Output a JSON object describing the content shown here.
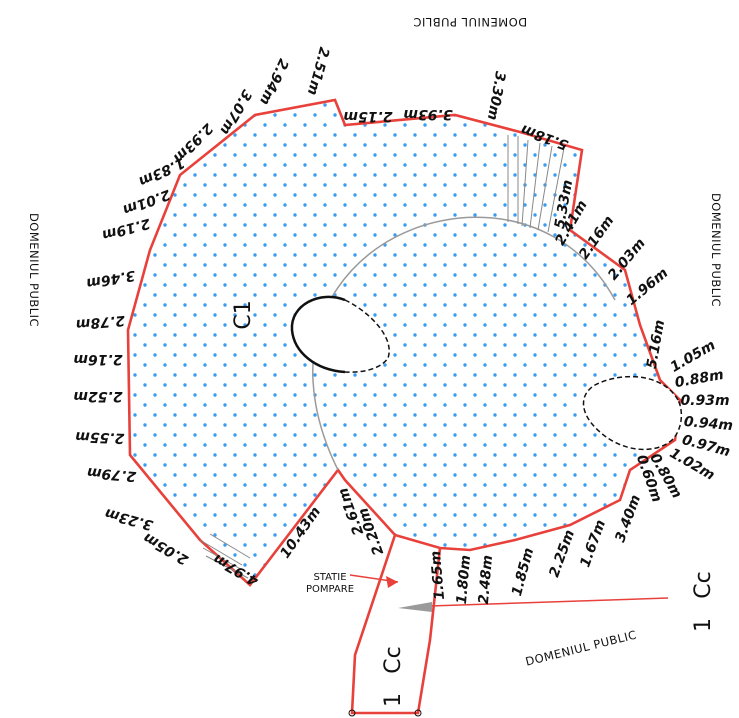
{
  "colors": {
    "boundary": "#e8413b",
    "dots": "#3b9cf0",
    "inner_line": "#9a9a9a",
    "text": "#111111"
  },
  "labels": {
    "domeniul_top": "DOMENIUL PUBLIC",
    "domeniul_left": "DOMENIUL PUBLIC",
    "domeniul_right": "DOMENIUL PUBLIC",
    "domeniul_bottom": "DOMENIUL PUBLIC",
    "c1": "C1",
    "cc_bottom": "Cc",
    "cc_bottom_num": "1",
    "cc_right": "Cc",
    "cc_right_num": "1",
    "statie": "STATIE",
    "pompare": "POMPARE"
  },
  "dimensions": [
    "4.97m",
    "2.05m",
    "3.23m",
    "2.79m",
    "2.55m",
    "2.52m",
    "2.16m",
    "2.78m",
    "3.46m",
    "2.19m",
    "2.01m",
    "1.83m",
    "2.93m",
    "3.07m",
    "2.94m",
    "2.51m",
    "2.15m",
    "3.93m",
    "3.30m",
    "5.18m",
    "5.33m",
    "2.41m",
    "2.16m",
    "2.03m",
    "1.96m",
    "5.16m",
    "1.05m",
    "0.88m",
    "0.93m",
    "0.94m",
    "0.97m",
    "1.02m",
    "0.80m",
    "0.60m",
    "3.40m",
    "1.67m",
    "2.25m",
    "1.85m",
    "2.48m",
    "1.80m",
    "1.65m",
    "2.20m",
    "2.61m",
    "10.43m"
  ]
}
